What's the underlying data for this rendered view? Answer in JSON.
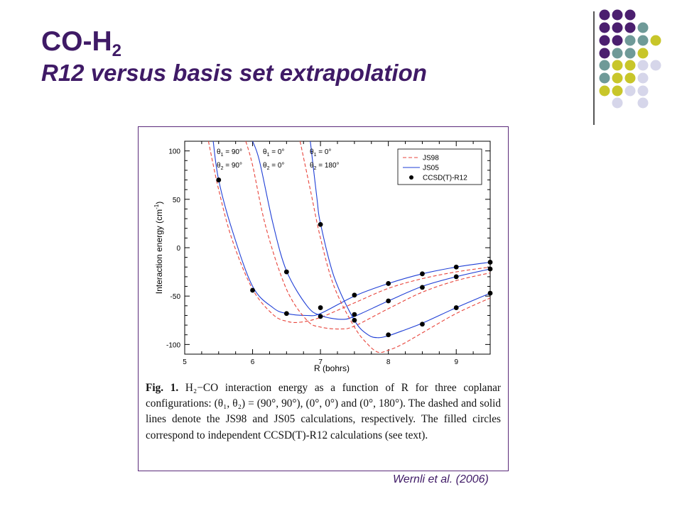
{
  "slide": {
    "title_main": "CO-H",
    "title_sub": "2",
    "subtitle": "R12 versus basis set extrapolation",
    "credit": "Wernli et al. (2006)"
  },
  "colors": {
    "title": "#3f1a66",
    "purple": "#4b1f6f",
    "teal": "#6f9a98",
    "olive": "#c8c62a",
    "lavender": "#d6d6ea",
    "dashed_series": "#e8453c",
    "solid_series": "#1f3fd6"
  },
  "decoration_grid": [
    [
      "purple",
      "purple",
      "purple",
      "",
      ""
    ],
    [
      "purple",
      "purple",
      "purple",
      "teal",
      ""
    ],
    [
      "purple",
      "purple",
      "teal",
      "teal",
      "olive"
    ],
    [
      "purple",
      "teal",
      "teal",
      "olive",
      ""
    ],
    [
      "teal",
      "olive",
      "olive",
      "lavender",
      "lavender"
    ],
    [
      "teal",
      "olive",
      "olive",
      "lavender",
      ""
    ],
    [
      "olive",
      "olive",
      "lavender",
      "lavender",
      ""
    ],
    [
      "",
      "lavender",
      "",
      "lavender",
      ""
    ]
  ],
  "figure": {
    "caption_prefix": "Fig. 1.",
    "caption_text": "H₂−CO interaction energy as a function of R for three copla­nar configurations: (θ₁, θ₂) = (90°, 90°), (0°, 0°) and (0°, 180°). The dashed and solid lines denote the JS98 and JS05 calculations, respec­tively. The filled circles correspond to independent CCSD(T)-R12 cal­culations (see text)."
  },
  "chart_data": {
    "type": "line",
    "xlabel": "R (bohrs)",
    "ylabel": "Interaction energy (cm-1)",
    "xlim": [
      5,
      9.5
    ],
    "ylim": [
      -110,
      110
    ],
    "x_ticks": [
      "5",
      "6",
      "7",
      "8",
      "9"
    ],
    "y_ticks": [
      "100",
      "50",
      "0",
      "-50",
      "-100"
    ],
    "legend_position": "top-right",
    "legend": [
      "JS98",
      "JS05",
      "CCSD(T)-R12"
    ],
    "configuration_labels": [
      {
        "l1": "θ1 = 90°",
        "l2": "θ2 = 90°"
      },
      {
        "l1": "θ1 = 0°",
        "l2": "θ2 = 0°"
      },
      {
        "l1": "θ1 = 0°",
        "l2": "θ2 = 180°"
      }
    ],
    "series": [
      {
        "name": "JS98",
        "config": "90/90",
        "style": "dashed",
        "x": [
          5.35,
          5.5,
          5.7,
          6.0,
          6.3,
          6.5,
          6.7,
          7.0,
          7.5,
          8.0,
          8.5,
          9.0,
          9.5
        ],
        "y": [
          110,
          60,
          8,
          -43,
          -69,
          -76,
          -77,
          -72,
          -57,
          -42,
          -32,
          -25,
          -20
        ]
      },
      {
        "name": "JS05",
        "config": "90/90",
        "style": "solid",
        "x": [
          5.42,
          5.5,
          5.7,
          6.0,
          6.3,
          6.5,
          6.8,
          7.0,
          7.5,
          8.0,
          8.5,
          9.0,
          9.5
        ],
        "y": [
          110,
          70,
          18,
          -40,
          -62,
          -68,
          -70,
          -68,
          -50,
          -37,
          -27,
          -20,
          -15
        ]
      },
      {
        "name": "JS98",
        "config": "0/0",
        "style": "dashed",
        "x": [
          5.9,
          6.0,
          6.2,
          6.5,
          6.8,
          7.0,
          7.3,
          7.5,
          8.0,
          8.5,
          9.0,
          9.5
        ],
        "y": [
          110,
          85,
          20,
          -43,
          -75,
          -82,
          -84,
          -81,
          -63,
          -46,
          -34,
          -26
        ]
      },
      {
        "name": "JS05",
        "config": "0/0",
        "style": "solid",
        "x": [
          6.0,
          6.1,
          6.3,
          6.5,
          6.8,
          7.0,
          7.3,
          7.5,
          8.0,
          8.5,
          9.0,
          9.5
        ],
        "y": [
          110,
          90,
          25,
          -24,
          -60,
          -70,
          -74,
          -71,
          -55,
          -40,
          -30,
          -22
        ]
      },
      {
        "name": "JS98",
        "config": "0/180",
        "style": "dashed",
        "x": [
          6.7,
          6.85,
          7.0,
          7.2,
          7.5,
          7.7,
          7.85,
          8.0,
          8.2,
          8.5,
          9.0,
          9.5
        ],
        "y": [
          110,
          60,
          10,
          -40,
          -82,
          -100,
          -108,
          -106,
          -100,
          -88,
          -68,
          -52
        ]
      },
      {
        "name": "JS05",
        "config": "0/180",
        "style": "solid",
        "x": [
          6.85,
          6.95,
          7.0,
          7.2,
          7.5,
          7.7,
          7.85,
          8.0,
          8.2,
          8.5,
          9.0,
          9.5
        ],
        "y": [
          110,
          50,
          25,
          -30,
          -75,
          -90,
          -93,
          -91,
          -86,
          -78,
          -62,
          -47
        ]
      },
      {
        "name": "CCSD(T)-R12",
        "config": "90/90",
        "style": "points",
        "x": [
          5.5,
          6.0,
          6.5,
          7.0,
          7.5,
          8.0,
          8.5,
          9.0,
          9.5
        ],
        "y": [
          70,
          -44,
          -68,
          -71,
          -69,
          -55,
          -41,
          -30,
          -22
        ]
      },
      {
        "name": "CCSD(T)-R12",
        "config": "0/0",
        "style": "points",
        "x": [
          6.5,
          7.0,
          7.5,
          8.0,
          8.5,
          9.0,
          9.5
        ],
        "y": [
          -25,
          -62,
          -49,
          -37,
          -27,
          -20,
          -15
        ]
      },
      {
        "name": "CCSD(T)-R12",
        "config": "0/180",
        "style": "points",
        "x": [
          7.0,
          7.5,
          8.0,
          8.5,
          9.0,
          9.5
        ],
        "y": [
          24,
          -75,
          -90,
          -79,
          -62,
          -47
        ]
      }
    ]
  }
}
